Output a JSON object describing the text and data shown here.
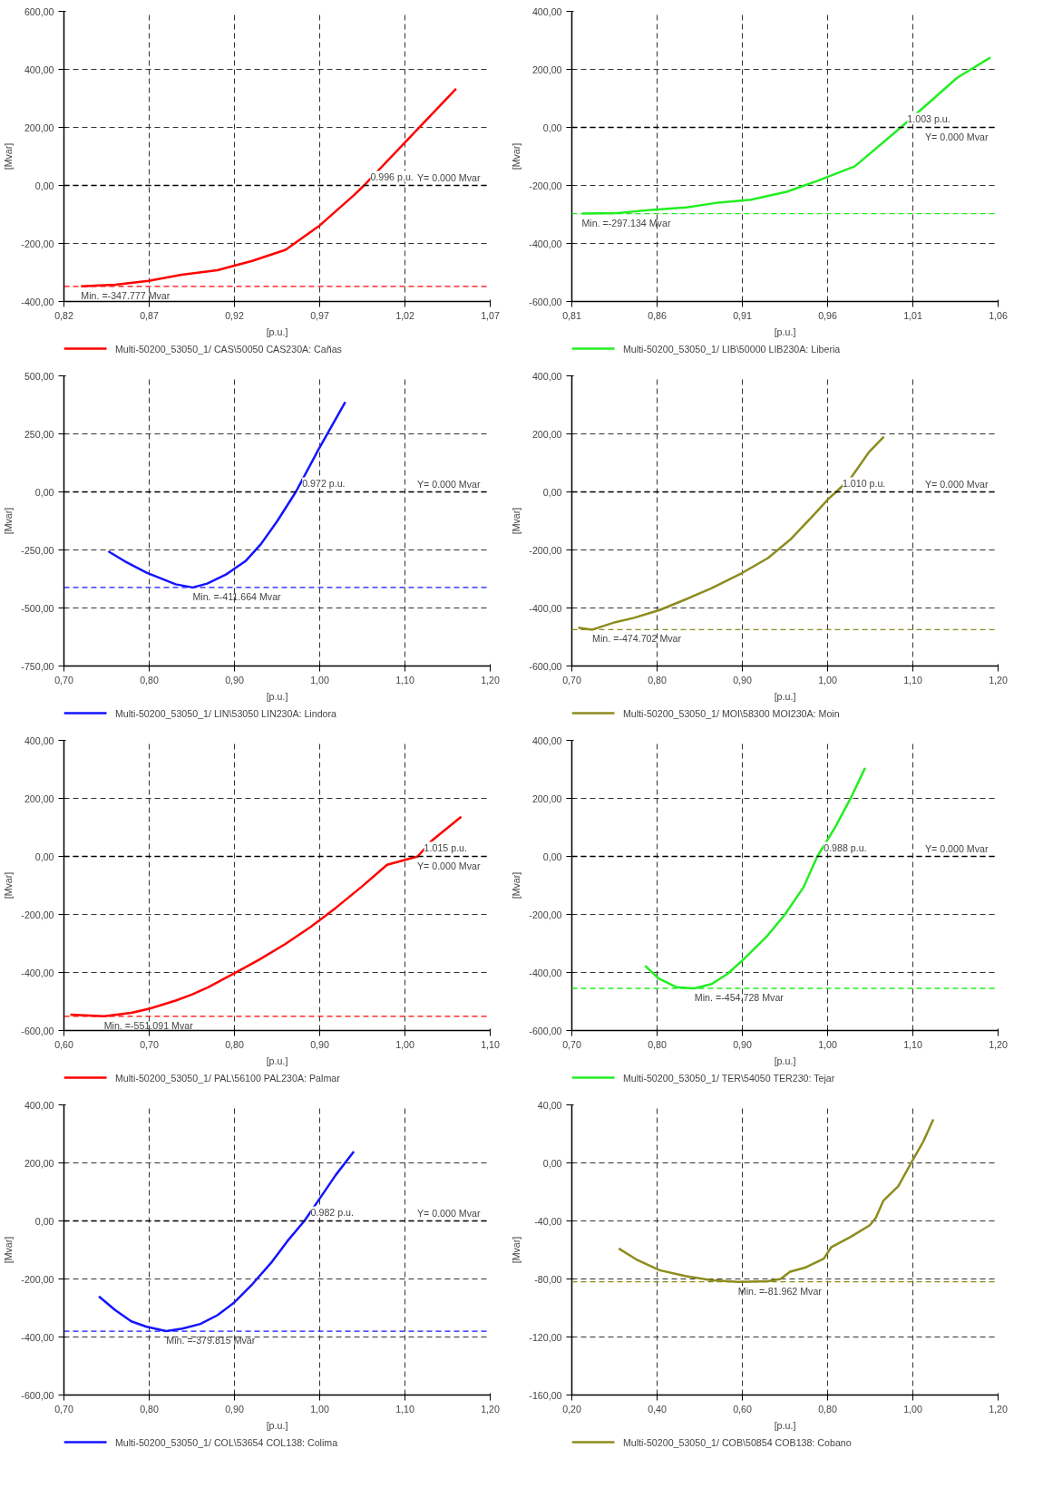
{
  "chart_data": [
    {
      "type": "line",
      "xlabel": "[p.u.]",
      "ylabel": "[Mvar]",
      "grid": true,
      "legend": "bottom",
      "line_style": "solid",
      "xlim": [
        0.82,
        1.07
      ],
      "xticks": [
        {
          "value": 0.82,
          "label": "0,82"
        },
        {
          "value": 0.87,
          "label": "0,87"
        },
        {
          "value": 0.92,
          "label": "0,92"
        },
        {
          "value": 0.97,
          "label": "0,97"
        },
        {
          "value": 1.02,
          "label": "1,02"
        },
        {
          "value": 1.07,
          "label": "1,07"
        }
      ],
      "ylim": [
        -400,
        600
      ],
      "yticks": [
        {
          "value": -400,
          "label": "-400,00"
        },
        {
          "value": -200,
          "label": "-200,00"
        },
        {
          "value": 0,
          "label": "0,00"
        },
        {
          "value": 200,
          "label": "200,00"
        },
        {
          "value": 400,
          "label": "400,00"
        },
        {
          "value": 600,
          "label": "600,00"
        }
      ],
      "series": [
        {
          "name": "Multi-50200_53050_1/  CAS\\50050 CAS230A: Cañas",
          "color": "#ff0000",
          "x": [
            0.83,
            0.85,
            0.8696,
            0.889,
            0.91,
            0.93,
            0.95,
            0.97,
            0.99,
            0.996,
            1.02,
            1.05
          ],
          "values": [
            -347.777,
            -342,
            -329,
            -308,
            -292,
            -261,
            -222,
            -138,
            -34,
            0,
            148,
            333
          ]
        }
      ],
      "ref_lines": [
        {
          "axis": "y",
          "value": 0,
          "label": "Y=  0.000 Mvar",
          "color": "#000000"
        },
        {
          "axis": "y",
          "value": -347.777,
          "color": "#ff0000"
        }
      ],
      "annotations": [
        {
          "text": "0.996 p.u.",
          "x": 0.996,
          "y": 0
        },
        {
          "text": "Min. =-347.777 Mvar",
          "x": 0.83,
          "y": -347.777
        }
      ]
    },
    {
      "type": "line",
      "xlabel": "[p.u.]",
      "ylabel": "[Mvar]",
      "grid": true,
      "legend": "bottom",
      "line_style": "solid",
      "xlim": [
        0.81,
        1.06
      ],
      "xticks": [
        {
          "value": 0.81,
          "label": "0,81"
        },
        {
          "value": 0.86,
          "label": "0,86"
        },
        {
          "value": 0.91,
          "label": "0,91"
        },
        {
          "value": 0.96,
          "label": "0,96"
        },
        {
          "value": 1.01,
          "label": "1,01"
        },
        {
          "value": 1.06,
          "label": "1,06"
        }
      ],
      "ylim": [
        -600,
        400
      ],
      "yticks": [
        {
          "value": -600,
          "label": "-600,00"
        },
        {
          "value": -400,
          "label": "-400,00"
        },
        {
          "value": -200,
          "label": "-200,00"
        },
        {
          "value": 0,
          "label": "0,00"
        },
        {
          "value": 200,
          "label": "200,00"
        },
        {
          "value": 400,
          "label": "400,00"
        }
      ],
      "series": [
        {
          "name": "Multi-50200_53050_1/  LIB\\50000 LIB230A: Liberia",
          "color": "#22ee22",
          "x": [
            0.8158,
            0.8367,
            0.857,
            0.877,
            0.896,
            0.915,
            0.936,
            0.9545,
            0.976,
            1.003,
            1.036,
            1.0555
          ],
          "values": [
            -297.134,
            -295,
            -284,
            -276,
            -259,
            -249,
            -222,
            -183,
            -134,
            0,
            171,
            241
          ]
        }
      ],
      "ref_lines": [
        {
          "axis": "y",
          "value": 0,
          "label": "Y=  0.000 Mvar",
          "color": "#000000"
        },
        {
          "axis": "y",
          "value": -297.134,
          "color": "#22ee22"
        }
      ],
      "annotations": [
        {
          "text": "1.003 p.u.",
          "x": 1.003,
          "y": 0
        },
        {
          "text": "Min. =-297.134 Mvar",
          "x": 0.8158,
          "y": -297.134
        }
      ]
    },
    {
      "type": "line",
      "xlabel": "[p.u.]",
      "ylabel": "[Mvar]",
      "grid": true,
      "legend": "bottom",
      "line_style": "solid",
      "xlim": [
        0.7,
        1.2
      ],
      "xticks": [
        {
          "value": 0.7,
          "label": "0,70"
        },
        {
          "value": 0.8,
          "label": "0,80"
        },
        {
          "value": 0.9,
          "label": "0,90"
        },
        {
          "value": 1.0,
          "label": "1,00"
        },
        {
          "value": 1.1,
          "label": "1,10"
        },
        {
          "value": 1.2,
          "label": "1,20"
        }
      ],
      "ylim": [
        -750,
        500
      ],
      "yticks": [
        {
          "value": -750,
          "label": "-750,00"
        },
        {
          "value": -500,
          "label": "-500,00"
        },
        {
          "value": -250,
          "label": "-250,00"
        },
        {
          "value": 0,
          "label": "0,00"
        },
        {
          "value": 250,
          "label": "250,00"
        },
        {
          "value": 500,
          "label": "500,00"
        }
      ],
      "series": [
        {
          "name": "Multi-50200_53050_1/  LIN\\53050 LIN230A: Lindora",
          "color": "#1414ff",
          "x": [
            0.752,
            0.771,
            0.797,
            0.831,
            0.851,
            0.868,
            0.89,
            0.913,
            0.931,
            0.95,
            0.972,
            0.9985,
            1.03
          ],
          "values": [
            -256,
            -298,
            -348,
            -398,
            -411.664,
            -395,
            -356,
            -298,
            -225,
            -127,
            0,
            182,
            387
          ]
        }
      ],
      "ref_lines": [
        {
          "axis": "y",
          "value": 0,
          "label": "Y=  0.000 Mvar",
          "color": "#000000"
        },
        {
          "axis": "y",
          "value": -411.664,
          "color": "#1414ff"
        }
      ],
      "annotations": [
        {
          "text": "0.972 p.u.",
          "x": 0.972,
          "y": 0
        },
        {
          "text": "Min. =-411.664 Mvar",
          "x": 0.851,
          "y": -411.664
        }
      ]
    },
    {
      "type": "line",
      "xlabel": "[p.u.]",
      "ylabel": "[Mvar]",
      "grid": true,
      "legend": "bottom",
      "line_style": "solid",
      "xlim": [
        0.7,
        1.2
      ],
      "xticks": [
        {
          "value": 0.7,
          "label": "0,70"
        },
        {
          "value": 0.8,
          "label": "0,80"
        },
        {
          "value": 0.9,
          "label": "0,90"
        },
        {
          "value": 1.0,
          "label": "1,00"
        },
        {
          "value": 1.1,
          "label": "1,10"
        },
        {
          "value": 1.2,
          "label": "1,20"
        }
      ],
      "ylim": [
        -600,
        400
      ],
      "yticks": [
        {
          "value": -600,
          "label": "-600,00"
        },
        {
          "value": -400,
          "label": "-400,00"
        },
        {
          "value": -200,
          "label": "-200,00"
        },
        {
          "value": 0,
          "label": "0,00"
        },
        {
          "value": 200,
          "label": "200,00"
        },
        {
          "value": 400,
          "label": "400,00"
        }
      ],
      "series": [
        {
          "name": "Multi-50200_53050_1/  MOI\\58300 MOI230A: Moin",
          "color": "#8c8c1e",
          "x": [
            0.7075,
            0.724,
            0.751,
            0.773,
            0.803,
            0.833,
            0.863,
            0.9,
            0.93,
            0.956,
            0.982,
            1.001,
            1.01,
            1.027,
            1.049,
            1.066
          ],
          "values": [
            -468,
            -474.702,
            -449,
            -434,
            -407,
            -371,
            -333,
            -279,
            -228,
            -165,
            -85,
            -24,
            0,
            47,
            139,
            190
          ]
        }
      ],
      "ref_lines": [
        {
          "axis": "y",
          "value": 0,
          "label": "Y=  0.000 Mvar",
          "color": "#000000"
        },
        {
          "axis": "y",
          "value": -474.702,
          "color": "#8c8c1e"
        }
      ],
      "annotations": [
        {
          "text": "1.010 p.u.",
          "x": 1.01,
          "y": 0
        },
        {
          "text": "Min. =-474.702 Mvar",
          "x": 0.724,
          "y": -474.702
        }
      ]
    },
    {
      "type": "line",
      "xlabel": "[p.u.]",
      "ylabel": "[Mvar]",
      "grid": true,
      "legend": "bottom",
      "line_style": "solid",
      "xlim": [
        0.6,
        1.1
      ],
      "xticks": [
        {
          "value": 0.6,
          "label": "0,60"
        },
        {
          "value": 0.7,
          "label": "0,70"
        },
        {
          "value": 0.8,
          "label": "0,80"
        },
        {
          "value": 0.9,
          "label": "0,90"
        },
        {
          "value": 1.0,
          "label": "1,00"
        },
        {
          "value": 1.1,
          "label": "1,10"
        }
      ],
      "ylim": [
        -600,
        400
      ],
      "yticks": [
        {
          "value": -600,
          "label": "-600,00"
        },
        {
          "value": -400,
          "label": "-400,00"
        },
        {
          "value": -200,
          "label": "-200,00"
        },
        {
          "value": 0,
          "label": "0,00"
        },
        {
          "value": 200,
          "label": "200,00"
        },
        {
          "value": 400,
          "label": "400,00"
        }
      ],
      "series": [
        {
          "name": "Multi-50200_53050_1/  PAL\\56100 PAL230A: Palmar",
          "color": "#ff0000",
          "x": [
            0.6075,
            0.647,
            0.679,
            0.701,
            0.731,
            0.75,
            0.769,
            0.799,
            0.829,
            0.859,
            0.889,
            0.919,
            0.949,
            0.979,
            1.015,
            1.031,
            1.066
          ],
          "values": [
            -545,
            -551.091,
            -539,
            -524,
            -497,
            -476,
            -451,
            -404,
            -356,
            -303,
            -244,
            -177,
            -105,
            -29,
            0,
            53,
            137
          ]
        }
      ],
      "ref_lines": [
        {
          "axis": "y",
          "value": 0,
          "label": "Y=  0.000 Mvar",
          "color": "#000000"
        },
        {
          "axis": "y",
          "value": -551.091,
          "color": "#ff0000"
        }
      ],
      "annotations": [
        {
          "text": "1.015 p.u.",
          "x": 1.015,
          "y": 0
        },
        {
          "text": "Min. =-551.091 Mvar",
          "x": 0.647,
          "y": -551.091
        }
      ]
    },
    {
      "type": "line",
      "xlabel": "[p.u.]",
      "ylabel": "[Mvar]",
      "grid": true,
      "legend": "bottom",
      "line_style": "solid",
      "xlim": [
        0.7,
        1.2
      ],
      "xticks": [
        {
          "value": 0.7,
          "label": "0,70"
        },
        {
          "value": 0.8,
          "label": "0,80"
        },
        {
          "value": 0.9,
          "label": "0,90"
        },
        {
          "value": 1.0,
          "label": "1,00"
        },
        {
          "value": 1.1,
          "label": "1,10"
        },
        {
          "value": 1.2,
          "label": "1,20"
        }
      ],
      "ylim": [
        -600,
        400
      ],
      "yticks": [
        {
          "value": -600,
          "label": "-600,00"
        },
        {
          "value": -400,
          "label": "-400,00"
        },
        {
          "value": -200,
          "label": "-200,00"
        },
        {
          "value": 0,
          "label": "0,00"
        },
        {
          "value": 200,
          "label": "200,00"
        },
        {
          "value": 400,
          "label": "400,00"
        }
      ],
      "series": [
        {
          "name": "Multi-50200_53050_1/  TER\\54050 TER230: Tejar",
          "color": "#22ee22",
          "x": [
            0.786,
            0.802,
            0.823,
            0.844,
            0.864,
            0.883,
            0.901,
            0.928,
            0.95,
            0.972,
            0.988,
            1.009,
            1.028,
            1.044
          ],
          "values": [
            -377,
            -421,
            -451,
            -454.728,
            -440,
            -404,
            -356,
            -278,
            -200,
            -105,
            0,
            101,
            206,
            305
          ]
        }
      ],
      "ref_lines": [
        {
          "axis": "y",
          "value": 0,
          "label": "Y=  0.000 Mvar",
          "color": "#000000"
        },
        {
          "axis": "y",
          "value": -454.728,
          "color": "#22ee22"
        }
      ],
      "annotations": [
        {
          "text": "0.988 p.u.",
          "x": 0.988,
          "y": 0
        },
        {
          "text": "Min. =-454.728 Mvar",
          "x": 0.844,
          "y": -454.728
        }
      ]
    },
    {
      "type": "line",
      "xlabel": "[p.u.]",
      "ylabel": "[Mvar]",
      "grid": true,
      "legend": "bottom",
      "line_style": "solid",
      "xlim": [
        0.7,
        1.2
      ],
      "xticks": [
        {
          "value": 0.7,
          "label": "0,70"
        },
        {
          "value": 0.8,
          "label": "0,80"
        },
        {
          "value": 0.9,
          "label": "0,90"
        },
        {
          "value": 1.0,
          "label": "1,00"
        },
        {
          "value": 1.1,
          "label": "1,10"
        },
        {
          "value": 1.2,
          "label": "1,20"
        }
      ],
      "ylim": [
        -600,
        400
      ],
      "yticks": [
        {
          "value": -600,
          "label": "-600,00"
        },
        {
          "value": -400,
          "label": "-400,00"
        },
        {
          "value": -200,
          "label": "-200,00"
        },
        {
          "value": 0,
          "label": "0,00"
        },
        {
          "value": 200,
          "label": "200,00"
        },
        {
          "value": 400,
          "label": "400,00"
        }
      ],
      "series": [
        {
          "name": "Multi-50200_53050_1/  COL\\53654 COL138: Colima",
          "color": "#1414ff",
          "x": [
            0.741,
            0.76,
            0.779,
            0.797,
            0.82,
            0.839,
            0.86,
            0.88,
            0.899,
            0.921,
            0.944,
            0.962,
            0.982,
            1.0,
            1.019,
            1.04
          ],
          "values": [
            -260,
            -307,
            -346,
            -365,
            -379.815,
            -371,
            -355,
            -325,
            -283,
            -218,
            -141,
            -70,
            0,
            77,
            159,
            239
          ]
        }
      ],
      "ref_lines": [
        {
          "axis": "y",
          "value": 0,
          "label": "Y=  0.000 Mvar",
          "color": "#000000"
        },
        {
          "axis": "y",
          "value": -379.815,
          "color": "#1414ff"
        }
      ],
      "annotations": [
        {
          "text": "0.982 p.u.",
          "x": 0.982,
          "y": 0
        },
        {
          "text": "Min. =-379.815 Mvar",
          "x": 0.82,
          "y": -379.815
        }
      ]
    },
    {
      "type": "line",
      "xlabel": "[p.u.]",
      "ylabel": "[Mvar]",
      "grid": true,
      "legend": "bottom",
      "line_style": "solid",
      "xlim": [
        0.2,
        1.2
      ],
      "xticks": [
        {
          "value": 0.2,
          "label": "0,20"
        },
        {
          "value": 0.4,
          "label": "0,40"
        },
        {
          "value": 0.6,
          "label": "0,60"
        },
        {
          "value": 0.8,
          "label": "0,80"
        },
        {
          "value": 1.0,
          "label": "1,00"
        },
        {
          "value": 1.2,
          "label": "1,20"
        }
      ],
      "ylim": [
        -160,
        40
      ],
      "yticks": [
        {
          "value": -160,
          "label": "-160,00"
        },
        {
          "value": -120,
          "label": "-120,00"
        },
        {
          "value": -80,
          "label": "-80,00"
        },
        {
          "value": -40,
          "label": "-40,00"
        },
        {
          "value": 0,
          "label": "0,00"
        },
        {
          "value": 40,
          "label": "40,00"
        }
      ],
      "series": [
        {
          "name": "Multi-50200_53050_1/  COB\\50854 COB138: Cobano",
          "color": "#8c8c1e",
          "x": [
            0.31,
            0.354,
            0.406,
            0.466,
            0.525,
            0.59,
            0.66,
            0.69,
            0.712,
            0.749,
            0.791,
            0.809,
            0.854,
            0.899,
            0.913,
            0.931,
            0.966,
            0.996,
            1.025,
            1.048
          ],
          "values": [
            -59,
            -67,
            -74,
            -78,
            -80.8,
            -81.962,
            -81.6,
            -80,
            -75,
            -72,
            -66,
            -58,
            -51,
            -43,
            -38,
            -26,
            -16,
            0,
            15,
            30
          ]
        }
      ],
      "ref_lines": [
        {
          "axis": "y",
          "value": -81.962,
          "color": "#8c8c1e"
        }
      ],
      "annotations": [
        {
          "text": "Min. =-81.962 Mvar",
          "x": 0.59,
          "y": -81.962
        }
      ]
    }
  ]
}
